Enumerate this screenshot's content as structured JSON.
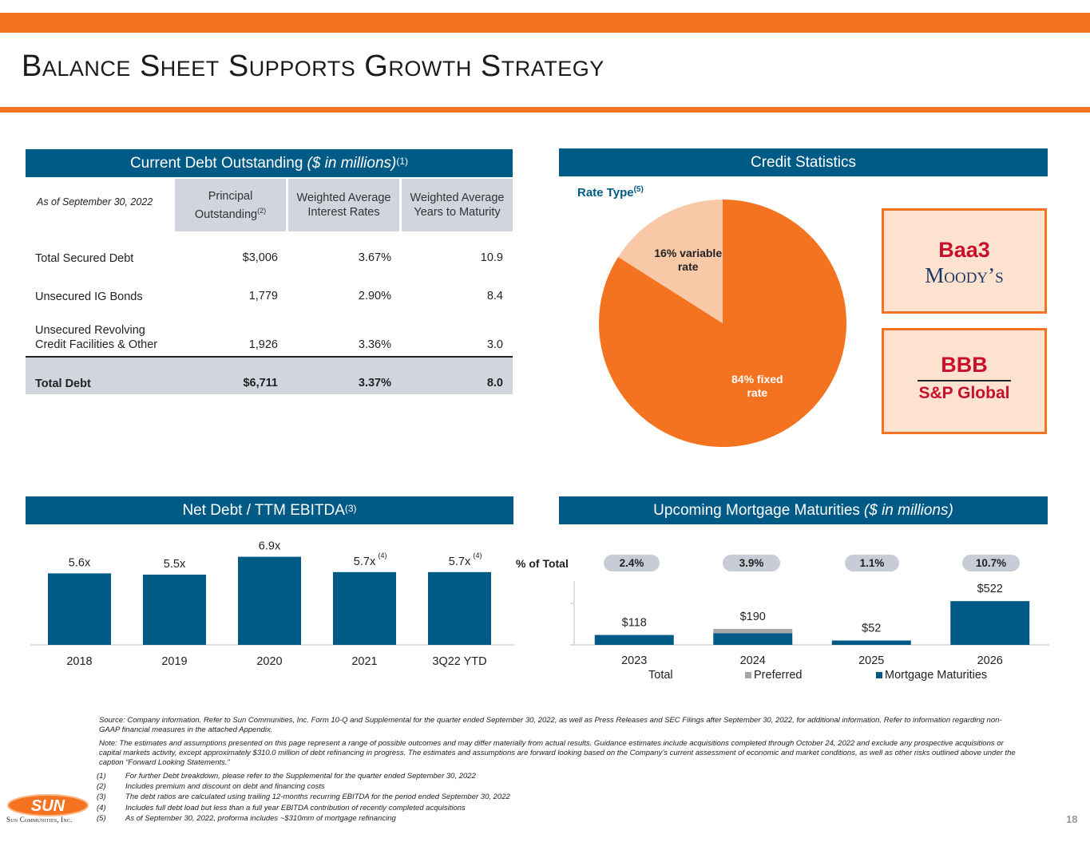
{
  "title": "Balance Sheet Supports Growth Strategy",
  "colors": {
    "accent": "#f47321",
    "primary": "#005a86",
    "table_shade": "#d1d5de",
    "pie_fixed": "#f47321",
    "pie_variable": "#f9c8a6",
    "preferred": "#a6a6a6"
  },
  "debt_section": {
    "title": "Current Debt Outstanding",
    "title_italic": "($ in millions)",
    "title_sup": "(1)",
    "as_of": "As of September 30, 2022",
    "columns": [
      {
        "label": "Principal Outstanding",
        "sup": "(2)"
      },
      {
        "label": "Weighted Average Interest Rates",
        "sup": ""
      },
      {
        "label": "Weighted Average Years to Maturity",
        "sup": ""
      }
    ],
    "rows": [
      {
        "label": "Total Secured Debt",
        "principal": "$3,006",
        "rate": "3.67%",
        "years": "10.9"
      },
      {
        "label": "Unsecured IG Bonds",
        "principal": "1,779",
        "rate": "2.90%",
        "years": "8.4"
      },
      {
        "label": "Unsecured Revolving Credit Facilities & Other",
        "principal": "1,926",
        "rate": "3.36%",
        "years": "3.0"
      }
    ],
    "total": {
      "label": "Total Debt",
      "principal": "$6,711",
      "rate": "3.37%",
      "years": "8.0"
    }
  },
  "credit_section": {
    "title": "Credit Statistics",
    "rate_type_label": "Rate Type",
    "rate_type_sup": "(5)",
    "pie": [
      {
        "name": "84% fixed rate",
        "value": 84,
        "color": "#f47321"
      },
      {
        "name": "16% variable rate",
        "value": 16,
        "color": "#f9c8a6"
      }
    ],
    "moodys": {
      "grade": "Baa3",
      "agency": "Moody’s"
    },
    "sp": {
      "grade": "BBB",
      "agency": "S&P Global"
    }
  },
  "ebitda_section": {
    "title": "Net Debt / TTM EBITDA",
    "title_sup": "(3)"
  },
  "maturities_section": {
    "title": "Upcoming Mortgage Maturities",
    "title_italic": "($ in millions)",
    "pct_label": "% of Total",
    "pct_values": [
      "2.4%",
      "3.9%",
      "1.1%",
      "10.7%"
    ],
    "legend": [
      "Total",
      "Preferred",
      "Mortgage Maturities"
    ]
  },
  "chart_data": [
    {
      "type": "bar",
      "categories": [
        "2018",
        "2019",
        "2020",
        "2021",
        "3Q22 YTD"
      ],
      "values": [
        5.6,
        5.5,
        6.9,
        5.7,
        5.7
      ],
      "labels": [
        "5.6x",
        "5.5x",
        "6.9x",
        "5.7x",
        "5.7x"
      ],
      "label_sups": [
        "",
        "",
        "",
        "(4)",
        "(4)"
      ],
      "ylim": [
        0,
        7.5
      ]
    },
    {
      "type": "bar",
      "stacked": true,
      "categories": [
        "2023",
        "2024",
        "2025",
        "2026"
      ],
      "series": [
        {
          "name": "Mortgage Maturities",
          "values": [
            118,
            140,
            52,
            522
          ],
          "color": "#005a86"
        },
        {
          "name": "Preferred",
          "values": [
            0,
            50,
            0,
            0
          ],
          "color": "#a6a6a6"
        }
      ],
      "totals": [
        118,
        190,
        52,
        522
      ],
      "total_labels": [
        "$118",
        "$190",
        "$52",
        "$522"
      ],
      "ylim": [
        0,
        1000
      ]
    }
  ],
  "footnotes": {
    "source": "Source: Company information. Refer to Sun Communities, Inc. Form 10-Q and Supplemental for the quarter ended September 30, 2022, as well as Press Releases and SEC Filings after September  30, 2022, for additional information. Refer to information regarding non-GAAP financial measures in the attached Appendix.",
    "note": "Note: The estimates and assumptions presented on this page represent a range of possible outcomes and may differ materially from actual results. Guidance estimates include acquisitions completed through October 24, 2022 and exclude any prospective acquisitions or capital markets activity, except approximately $310.0 million of debt refinancing in progress. The estimates and assumptions are forward looking based on the Company’s current assessment of economic and market conditions, as well as other risks outlined above under the caption “Forward Looking Statements.”",
    "items": [
      {
        "num": "(1)",
        "text": "For further Debt breakdown, please refer to the Supplemental for the quarter ended September 30, 2022"
      },
      {
        "num": "(2)",
        "text": "Includes premium and discount on debt and financing costs"
      },
      {
        "num": "(3)",
        "text": "The debt ratios are calculated using trailing 12-months recurring EBITDA for the period ended September 30, 2022"
      },
      {
        "num": "(4)",
        "text": "Includes full debt load but less than a full year EBITDA contribution of recently completed acquisitions"
      },
      {
        "num": "(5)",
        "text": "As of September 30, 2022, proforma includes ~$310mm of mortgage refinancing"
      }
    ]
  },
  "logo": {
    "mark": "SUN",
    "company": "Sun Communities, Inc."
  },
  "page_number": "18"
}
